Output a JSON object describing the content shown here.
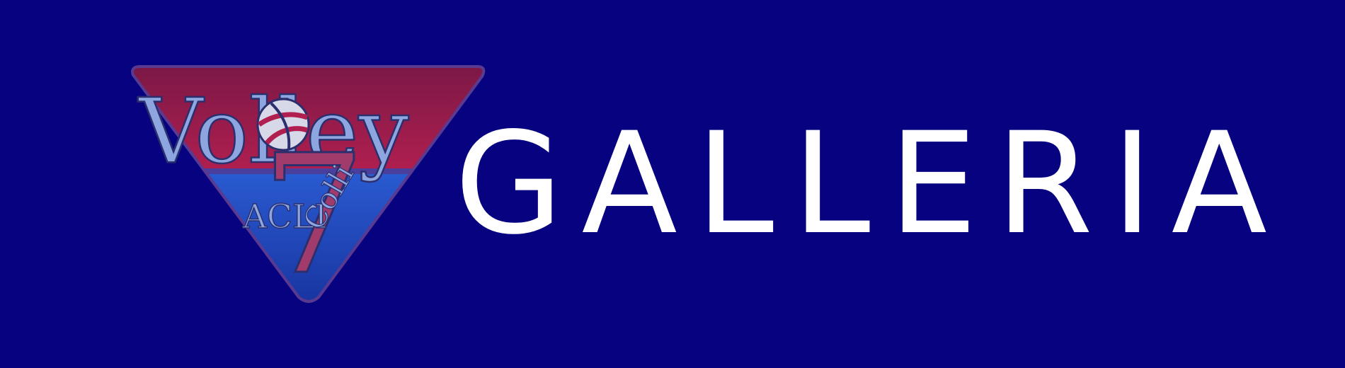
{
  "logo": {
    "word": "Volley",
    "number": "7",
    "left_text": "ACLI",
    "right_text": "Colli",
    "colors": {
      "top": "#b01f4f",
      "bottom": "#1f4fc5",
      "text": "#8da6df"
    }
  },
  "title": {
    "text": "GALLERIA"
  },
  "colors": {
    "background": "#070380",
    "title": "#ffffff"
  }
}
